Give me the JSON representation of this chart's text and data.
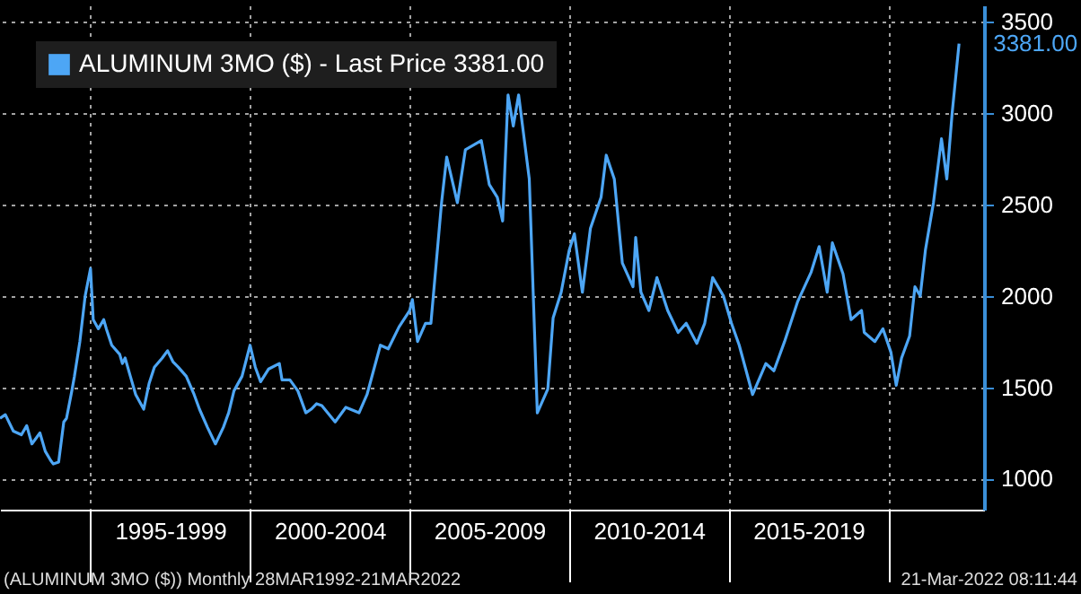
{
  "chart_data": {
    "type": "line",
    "x": [
      "1992-03",
      "1992-05",
      "1992-08",
      "1992-11",
      "1993-01",
      "1993-03",
      "1993-06",
      "1993-08",
      "1993-10",
      "1993-11",
      "1994-01",
      "1994-03",
      "1994-04",
      "1994-06",
      "1994-07",
      "1994-09",
      "1994-11",
      "1995-01",
      "1995-02",
      "1995-04",
      "1995-06",
      "1995-07",
      "1995-09",
      "1995-12",
      "1996-01",
      "1996-02",
      "1996-04",
      "1996-06",
      "1996-09",
      "1996-11",
      "1997-01",
      "1997-04",
      "1997-06",
      "1997-08",
      "1997-10",
      "1998-01",
      "1998-04",
      "1998-06",
      "1998-09",
      "1998-12",
      "1999-03",
      "1999-05",
      "1999-07",
      "1999-10",
      "2000-01",
      "2000-03",
      "2000-05",
      "2000-08",
      "2000-12",
      "2001-01",
      "2001-04",
      "2001-07",
      "2001-10",
      "2001-12",
      "2002-02",
      "2002-04",
      "2002-09",
      "2003-01",
      "2003-06",
      "2003-09",
      "2004-02",
      "2004-05",
      "2004-09",
      "2005-01",
      "2005-02",
      "2005-04",
      "2005-07",
      "2005-09",
      "2005-11",
      "2006-01",
      "2006-03",
      "2006-07",
      "2006-10",
      "2007-04",
      "2007-07",
      "2007-10",
      "2007-12",
      "2008-02",
      "2008-04",
      "2008-06",
      "2008-10",
      "2009-01",
      "2009-05",
      "2009-07",
      "2009-10",
      "2010-01",
      "2010-03",
      "2010-06",
      "2010-09",
      "2011-01",
      "2011-03",
      "2011-06",
      "2011-09",
      "2012-01",
      "2012-02",
      "2012-04",
      "2012-07",
      "2012-10",
      "2013-02",
      "2013-06",
      "2013-09",
      "2014-01",
      "2014-04",
      "2014-07",
      "2014-11",
      "2015-02",
      "2015-05",
      "2015-10",
      "2016-03",
      "2016-06",
      "2016-10",
      "2017-03",
      "2017-08",
      "2017-11",
      "2018-02",
      "2018-04",
      "2018-08",
      "2018-11",
      "2019-03",
      "2019-04",
      "2019-08",
      "2019-11",
      "2020-02",
      "2020-04",
      "2020-06",
      "2020-09",
      "2020-11",
      "2021-01",
      "2021-03",
      "2021-06",
      "2021-09",
      "2021-11",
      "2022-01",
      "2022-03-21"
    ],
    "series": [
      {
        "name": "ALUMINUM 3MO ($) - Last Price 3381.00",
        "color": "#4da6f5",
        "values": [
          1330,
          1350,
          1260,
          1240,
          1290,
          1190,
          1250,
          1150,
          1100,
          1080,
          1090,
          1310,
          1330,
          1480,
          1560,
          1750,
          2000,
          2150,
          1870,
          1820,
          1870,
          1820,
          1730,
          1680,
          1630,
          1660,
          1560,
          1460,
          1380,
          1520,
          1610,
          1660,
          1700,
          1640,
          1610,
          1560,
          1460,
          1380,
          1280,
          1190,
          1280,
          1360,
          1480,
          1560,
          1730,
          1610,
          1530,
          1600,
          1630,
          1540,
          1540,
          1480,
          1360,
          1380,
          1410,
          1400,
          1310,
          1390,
          1360,
          1460,
          1730,
          1710,
          1830,
          1920,
          1980,
          1750,
          1850,
          1850,
          2180,
          2510,
          2760,
          2510,
          2800,
          2850,
          2610,
          2540,
          2410,
          3100,
          2930,
          3100,
          2640,
          1360,
          1490,
          1880,
          2020,
          2250,
          2340,
          2020,
          2370,
          2540,
          2770,
          2640,
          2180,
          2050,
          2320,
          2020,
          1920,
          2100,
          1920,
          1800,
          1850,
          1740,
          1850,
          2100,
          2000,
          1850,
          1730,
          1460,
          1630,
          1590,
          1750,
          1970,
          2130,
          2270,
          2020,
          2290,
          2120,
          1870,
          1920,
          1800,
          1750,
          1820,
          1690,
          1510,
          1660,
          1780,
          2050,
          2000,
          2250,
          2510,
          2860,
          2640,
          3000,
          3381
        ]
      }
    ],
    "xlim": [
      "1992-03",
      "2023-01"
    ],
    "xticks": [
      {
        "value": "1995",
        "label": null
      },
      {
        "value": "1997-07",
        "label": "1995-1999"
      },
      {
        "value": "2000",
        "label": null
      },
      {
        "value": "2002-07",
        "label": "2000-2004"
      },
      {
        "value": "2005",
        "label": null
      },
      {
        "value": "2007-07",
        "label": "2005-2009"
      },
      {
        "value": "2010",
        "label": null
      },
      {
        "value": "2012-07",
        "label": "2010-2014"
      },
      {
        "value": "2015",
        "label": null
      },
      {
        "value": "2017-07",
        "label": "2015-2019"
      },
      {
        "value": "2020",
        "label": null
      }
    ],
    "ylim": [
      830,
      3590
    ],
    "yticks": [
      1000,
      1500,
      2000,
      2500,
      3000,
      3500
    ],
    "grid": true,
    "legend": "top left",
    "annotations": [
      {
        "text": "3381.00",
        "x": "2022-03-21",
        "y": 3381
      },
      "(ALUMINUM 3MO ($)) Monthly 28MAR1992-21MAR2022",
      "21-Mar-2022 08:11:44"
    ]
  }
}
